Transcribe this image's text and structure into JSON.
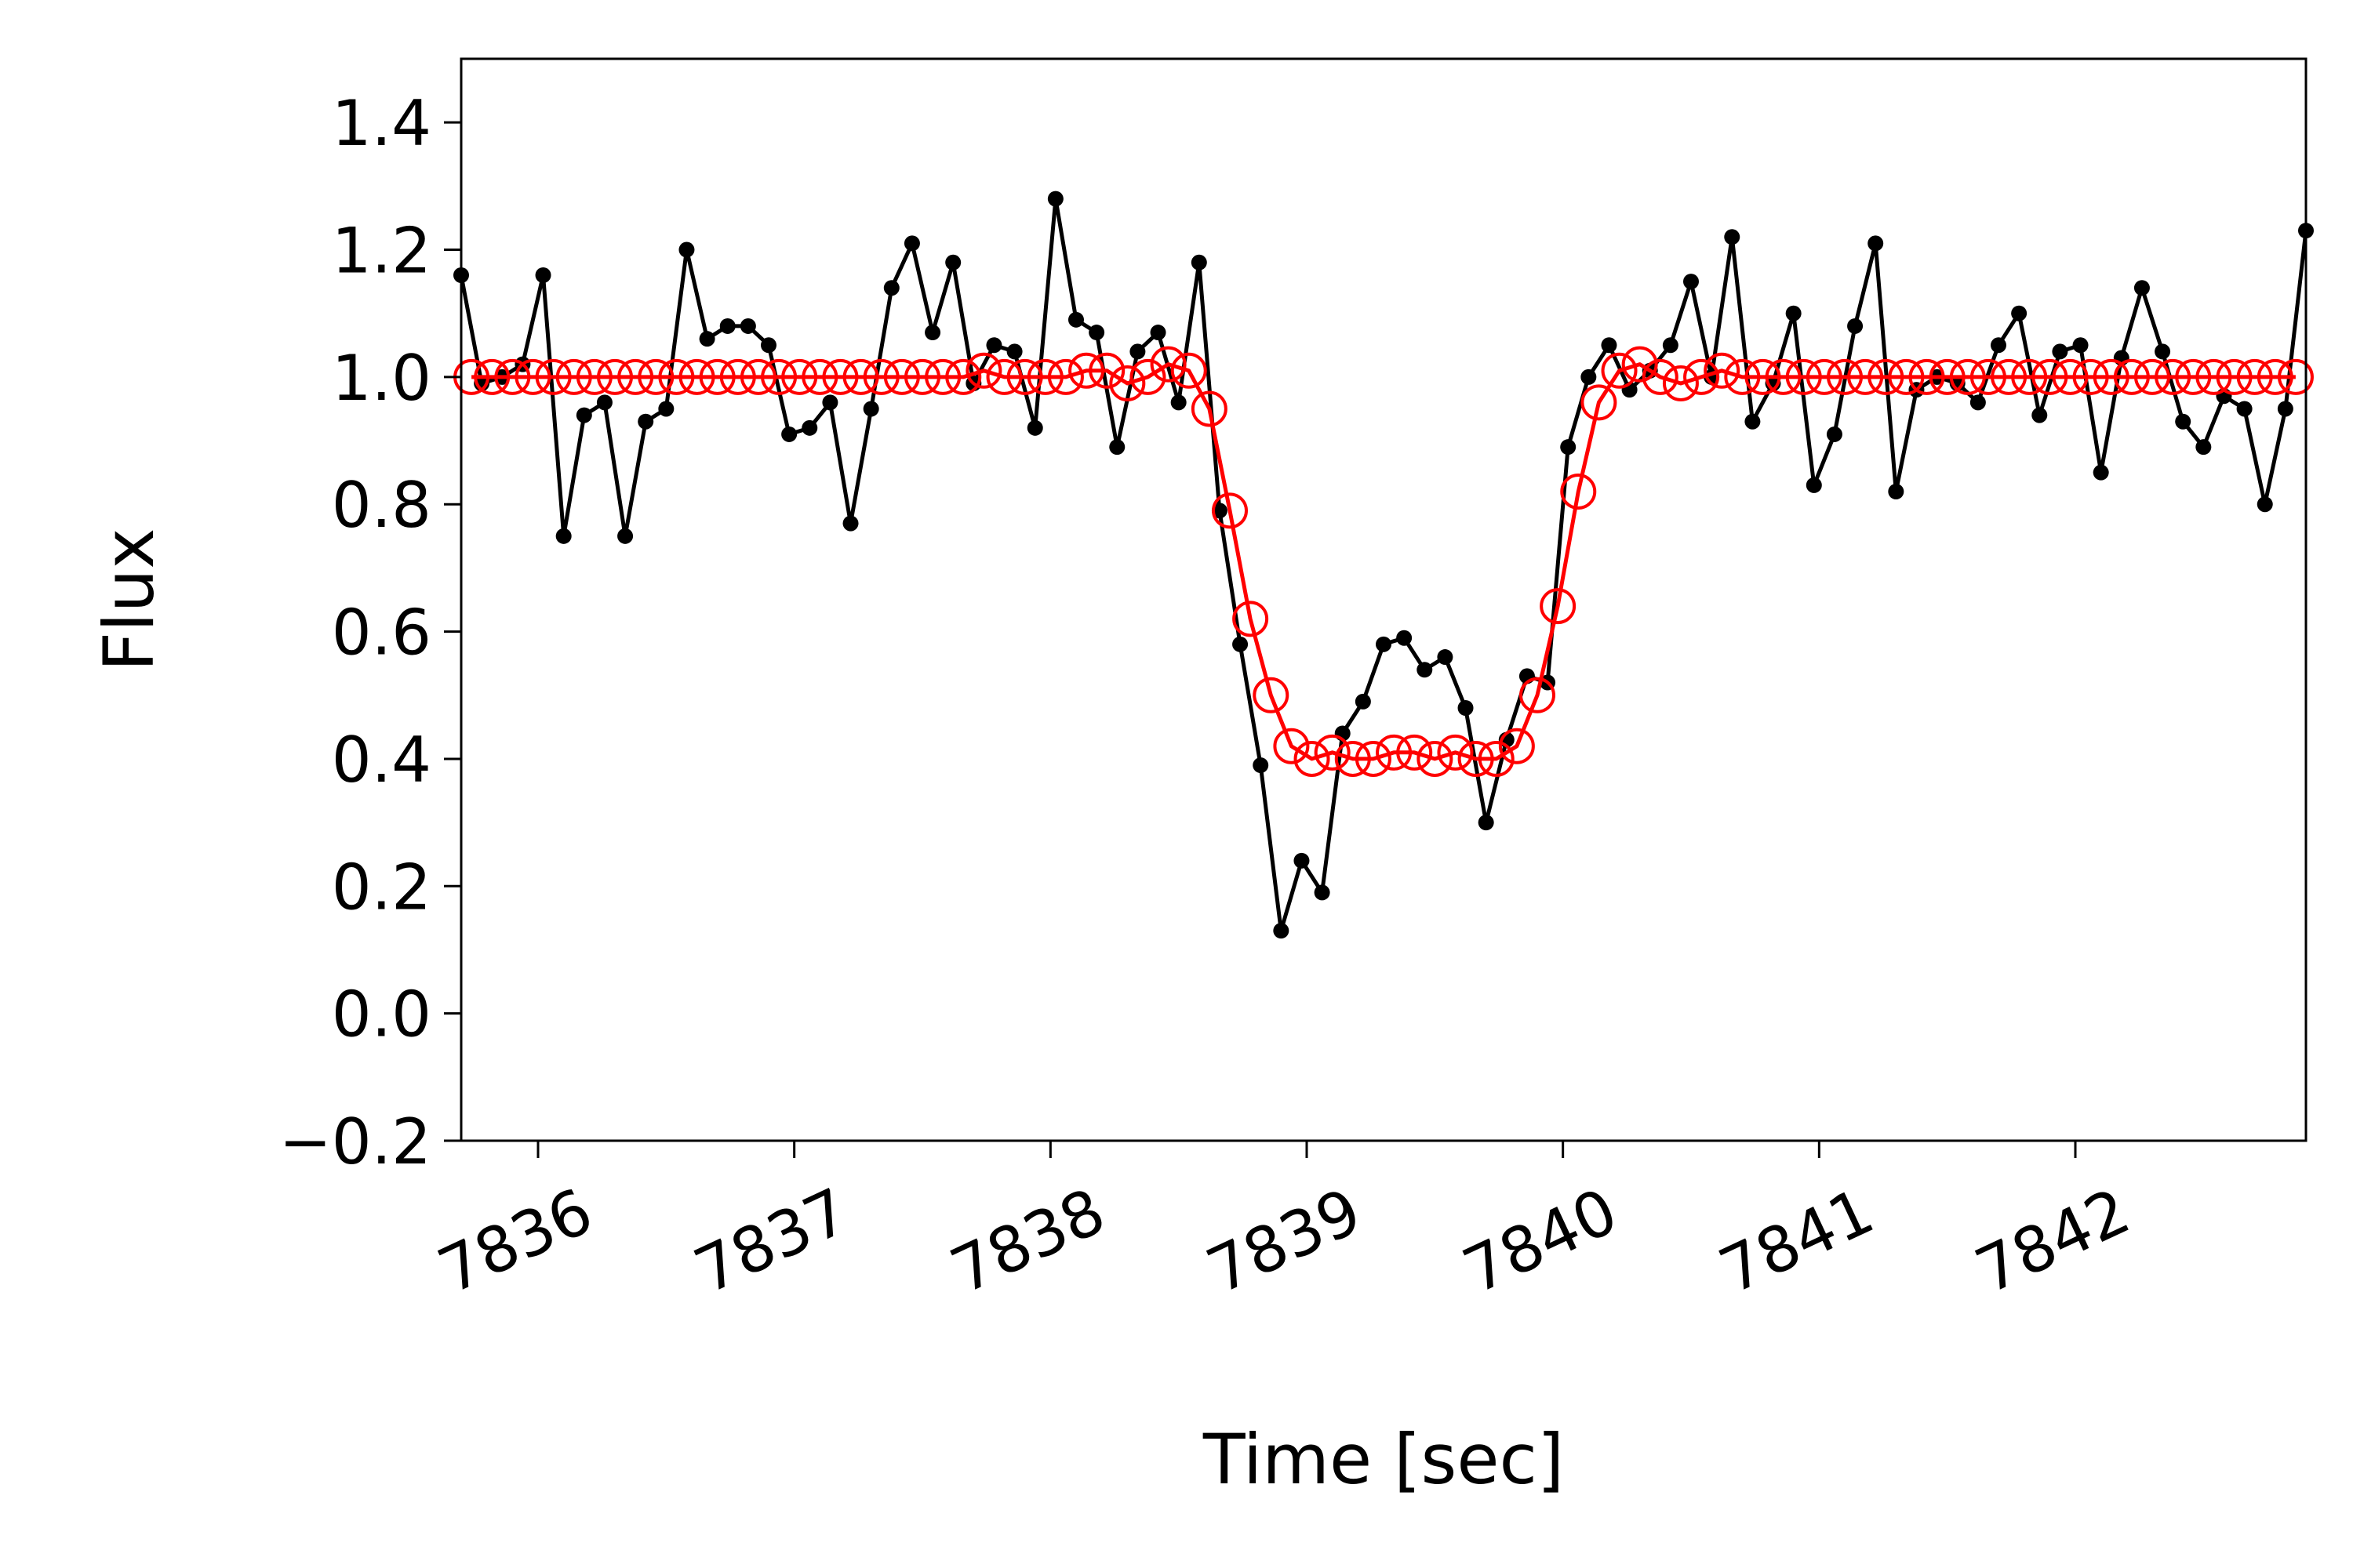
{
  "chart_data": {
    "type": "line",
    "title": "",
    "xlabel": "Time [sec]",
    "ylabel": "Flux",
    "xlim": [
      7835.7,
      7842.9
    ],
    "ylim": [
      -0.2,
      1.5
    ],
    "x_ticks": [
      7836,
      7837,
      7838,
      7839,
      7840,
      7841,
      7842
    ],
    "x_tick_labels": [
      "7836",
      "7837",
      "7838",
      "7839",
      "7840",
      "7841",
      "7842"
    ],
    "y_ticks": [
      -0.2,
      0.0,
      0.2,
      0.4,
      0.6,
      0.8,
      1.0,
      1.2,
      1.4
    ],
    "y_tick_labels": [
      "−0.2",
      "0.0",
      "0.2",
      "0.4",
      "0.6",
      "0.8",
      "1.0",
      "1.2",
      "1.4"
    ],
    "x_tick_rotation_deg": 25,
    "grid": false,
    "legend": "none",
    "series": [
      {
        "color": "#000000",
        "marker": "filled-circle",
        "x": [
          7835.7,
          7835.78,
          7835.86,
          7835.94,
          7836.02,
          7836.1,
          7836.18,
          7836.26,
          7836.34,
          7836.42,
          7836.5,
          7836.58,
          7836.66,
          7836.74,
          7836.82,
          7836.9,
          7836.98,
          7837.06,
          7837.14,
          7837.22,
          7837.3,
          7837.38,
          7837.46,
          7837.54,
          7837.62,
          7837.7,
          7837.78,
          7837.86,
          7837.94,
          7838.02,
          7838.1,
          7838.18,
          7838.26,
          7838.34,
          7838.42,
          7838.5,
          7838.58,
          7838.66,
          7838.74,
          7838.82,
          7838.9,
          7838.98,
          7839.06,
          7839.14,
          7839.22,
          7839.3,
          7839.38,
          7839.46,
          7839.54,
          7839.62,
          7839.7,
          7839.78,
          7839.86,
          7839.94,
          7840.02,
          7840.1,
          7840.18,
          7840.26,
          7840.34,
          7840.42,
          7840.5,
          7840.58,
          7840.66,
          7840.74,
          7840.82,
          7840.9,
          7840.98,
          7841.06,
          7841.14,
          7841.22,
          7841.3,
          7841.38,
          7841.46,
          7841.54,
          7841.62,
          7841.7,
          7841.78,
          7841.86,
          7841.94,
          7842.02,
          7842.1,
          7842.18,
          7842.26,
          7842.34,
          7842.42,
          7842.5,
          7842.58,
          7842.66,
          7842.74,
          7842.82,
          7842.9
        ],
        "y": [
          1.16,
          0.99,
          1.0,
          1.02,
          1.16,
          0.75,
          0.94,
          0.96,
          0.75,
          0.93,
          0.95,
          1.2,
          1.06,
          1.08,
          1.08,
          1.05,
          0.91,
          0.92,
          0.96,
          0.77,
          0.95,
          1.14,
          1.21,
          1.07,
          1.18,
          0.99,
          1.05,
          1.04,
          0.92,
          1.28,
          1.09,
          1.07,
          0.89,
          1.04,
          1.07,
          0.96,
          1.18,
          0.79,
          0.58,
          0.39,
          0.13,
          0.24,
          0.19,
          0.44,
          0.49,
          0.58,
          0.59,
          0.54,
          0.56,
          0.48,
          0.3,
          0.43,
          0.53,
          0.52,
          0.89,
          1.0,
          1.05,
          0.98,
          1.01,
          1.05,
          1.15,
          1.0,
          1.22,
          0.93,
          0.99,
          1.1,
          0.83,
          0.91,
          1.08,
          1.21,
          0.82,
          0.98,
          1.0,
          0.99,
          0.96,
          1.05,
          1.1,
          0.94,
          1.04,
          1.05,
          0.85,
          1.03,
          1.14,
          1.04,
          0.93,
          0.89,
          0.97,
          0.95,
          0.8,
          0.95,
          1.23
        ]
      },
      {
        "color": "#ff0000",
        "marker": "open-circle",
        "x": [
          7835.74,
          7835.82,
          7835.9,
          7835.98,
          7836.06,
          7836.14,
          7836.22,
          7836.3,
          7836.38,
          7836.46,
          7836.54,
          7836.62,
          7836.7,
          7836.78,
          7836.86,
          7836.94,
          7837.02,
          7837.1,
          7837.18,
          7837.26,
          7837.34,
          7837.42,
          7837.5,
          7837.58,
          7837.66,
          7837.74,
          7837.82,
          7837.9,
          7837.98,
          7838.06,
          7838.14,
          7838.22,
          7838.3,
          7838.38,
          7838.46,
          7838.54,
          7838.62,
          7838.7,
          7838.78,
          7838.86,
          7838.94,
          7839.02,
          7839.1,
          7839.18,
          7839.26,
          7839.34,
          7839.42,
          7839.5,
          7839.58,
          7839.66,
          7839.74,
          7839.82,
          7839.9,
          7839.98,
          7840.06,
          7840.14,
          7840.22,
          7840.3,
          7840.38,
          7840.46,
          7840.54,
          7840.62,
          7840.7,
          7840.78,
          7840.86,
          7840.94,
          7841.02,
          7841.1,
          7841.18,
          7841.26,
          7841.34,
          7841.42,
          7841.5,
          7841.58,
          7841.66,
          7841.74,
          7841.82,
          7841.9,
          7841.98,
          7842.06,
          7842.14,
          7842.22,
          7842.3,
          7842.38,
          7842.46,
          7842.54,
          7842.62,
          7842.7,
          7842.78,
          7842.86
        ],
        "y": [
          1.0,
          1.0,
          1.0,
          1.0,
          1.0,
          1.0,
          1.0,
          1.0,
          1.0,
          1.0,
          1.0,
          1.0,
          1.0,
          1.0,
          1.0,
          1.0,
          1.0,
          1.0,
          1.0,
          1.0,
          1.0,
          1.0,
          1.0,
          1.0,
          1.0,
          1.01,
          1.0,
          1.0,
          1.0,
          1.0,
          1.01,
          1.01,
          0.99,
          1.0,
          1.02,
          1.01,
          0.95,
          0.79,
          0.62,
          0.5,
          0.42,
          0.4,
          0.41,
          0.4,
          0.4,
          0.41,
          0.41,
          0.4,
          0.41,
          0.4,
          0.4,
          0.42,
          0.5,
          0.64,
          0.82,
          0.96,
          1.01,
          1.02,
          1.0,
          0.99,
          1.0,
          1.01,
          1.0,
          1.0,
          1.0,
          1.0,
          1.0,
          1.0,
          1.0,
          1.0,
          1.0,
          1.0,
          1.0,
          1.0,
          1.0,
          1.0,
          1.0,
          1.0,
          1.0,
          1.0,
          1.0,
          1.0,
          1.0,
          1.0,
          1.0,
          1.0,
          1.0,
          1.0,
          1.0,
          1.0
        ]
      }
    ]
  }
}
